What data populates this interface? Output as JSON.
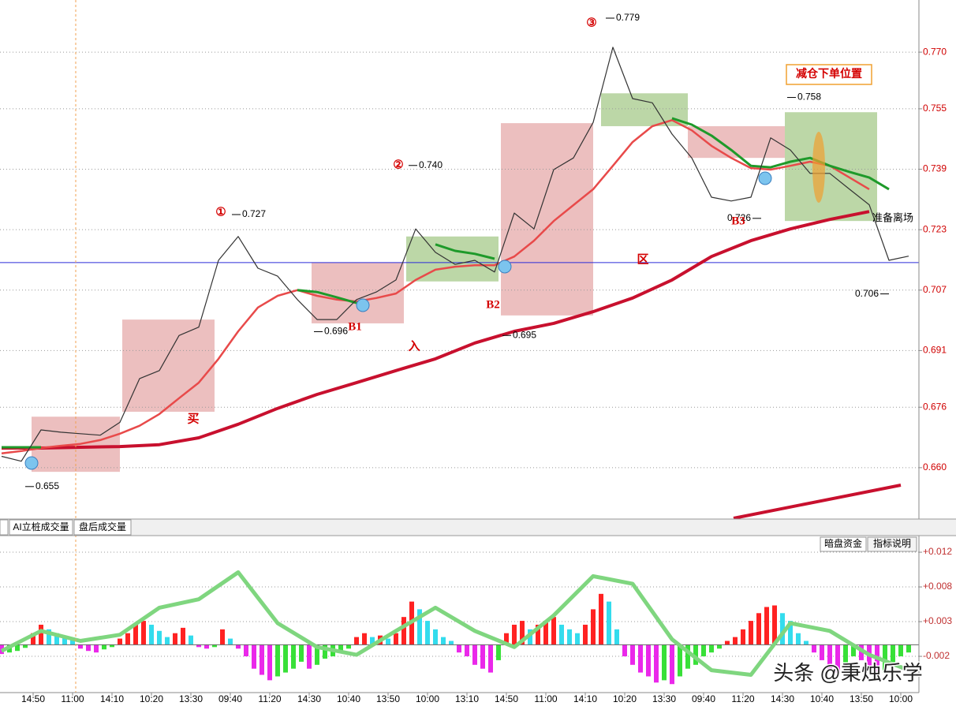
{
  "tabs": [
    "AI立桩成交量",
    "盘后成交量"
  ],
  "indicator_buttons": [
    "暗盘资金",
    "指标说明"
  ],
  "watermark": "头条 @秉烛乐学",
  "chart_data": [
    {
      "type": "line",
      "xlim": [
        -0.84,
        22.46
      ],
      "ylim": [
        0.6464,
        0.7838
      ],
      "yticks": [
        {
          "value": 0.66,
          "label": "0.660"
        },
        0.676,
        0.691,
        0.707,
        0.723,
        0.739,
        0.755,
        {
          "value": 0.77,
          "label": "0.770"
        }
      ],
      "grid": true,
      "level_line": {
        "value": 0.7143,
        "color": "#2b2bd9"
      },
      "zones": [
        {
          "x": [
            -0.04,
            2.2
          ],
          "y": [
            0.6589,
            0.6735
          ],
          "color": "#e6a9a9"
        },
        {
          "x": [
            2.26,
            4.6
          ],
          "y": [
            0.6748,
            0.6992
          ],
          "color": "#e6a9a9"
        },
        {
          "x": [
            7.06,
            9.4
          ],
          "y": [
            0.6982,
            0.7143
          ],
          "color": "#e6a9a9"
        },
        {
          "x": [
            9.46,
            11.8
          ],
          "y": [
            0.7093,
            0.7212
          ],
          "color": "#a6c98a"
        },
        {
          "x": [
            11.86,
            14.2
          ],
          "y": [
            0.7003,
            0.7512
          ],
          "color": "#e6a9a9"
        },
        {
          "x": [
            14.4,
            16.6
          ],
          "y": [
            0.7504,
            0.7591
          ],
          "color": "#a6c98a"
        },
        {
          "x": [
            16.6,
            19.06
          ],
          "y": [
            0.742,
            0.7504
          ],
          "color": "#e6a9a9"
        },
        {
          "x": [
            19.06,
            21.4
          ],
          "y": [
            0.7253,
            0.7541
          ],
          "color": "#a6c98a"
        }
      ],
      "series": [
        {
          "color": "#c8102e",
          "width": 4,
          "x": [
            -0.8,
            0.2,
            1.2,
            2.2,
            3.2,
            4.2,
            5.2,
            6.2,
            7.2,
            8.2,
            9.2,
            10.2,
            11.2,
            12.2,
            13.2,
            14.2,
            15.2,
            16.2,
            17.2,
            18.2,
            19.2,
            20.2,
            21.2,
            22.2
          ],
          "values": [
            0.6652,
            0.6652,
            0.6654,
            0.6656,
            0.6661,
            0.6679,
            0.6715,
            0.6757,
            0.6794,
            0.6825,
            0.6857,
            0.6888,
            0.693,
            0.6961,
            0.6982,
            0.7013,
            0.7049,
            0.7097,
            0.7159,
            0.7201,
            0.7232,
            0.7257,
            0.7278,
            null
          ]
        },
        {
          "color": "#e84a4a",
          "width": 2.5,
          "x": [
            -0.8,
            -0.3,
            0.2,
            0.7,
            1.2,
            1.7,
            2.2,
            2.7,
            3.2,
            3.7,
            4.2,
            4.7,
            5.2,
            5.7,
            6.2,
            6.7,
            7.2,
            7.7,
            8.2,
            8.7,
            9.2,
            9.7,
            10.2,
            10.7,
            11.2,
            11.7,
            12.2,
            12.7,
            13.2,
            13.7,
            14.2,
            14.7,
            15.2,
            15.7,
            16.2,
            16.7,
            17.2,
            17.7,
            18.2,
            18.7,
            19.2,
            19.7,
            20.2,
            20.7,
            21.2,
            21.7,
            22.2
          ],
          "values": [
            0.6638,
            0.6644,
            0.6652,
            0.6658,
            0.6663,
            0.6673,
            0.669,
            0.6711,
            0.6742,
            0.6784,
            0.6825,
            0.6888,
            0.6961,
            0.7024,
            0.7055,
            0.707,
            0.7055,
            0.7045,
            0.704,
            0.7049,
            0.7061,
            0.7097,
            0.7124,
            0.7132,
            0.7136,
            0.7136,
            0.7159,
            0.7201,
            0.7253,
            0.7295,
            0.7337,
            0.7399,
            0.7462,
            0.7504,
            0.752,
            0.7493,
            0.7452,
            0.742,
            0.7393,
            0.7389,
            0.7399,
            0.741,
            0.7399,
            0.7368,
            0.7337,
            null,
            null
          ]
        },
        {
          "color": "#1e9a2a",
          "width": 3,
          "x": [
            -0.8,
            -0.3,
            0.2,
            0.7,
            1.2,
            1.7,
            2.2,
            2.7,
            3.2,
            3.7,
            4.2,
            4.7,
            5.2,
            5.7,
            6.2,
            6.7,
            7.2,
            7.7,
            8.2,
            8.7,
            9.2,
            9.7,
            10.2,
            10.7,
            11.2,
            11.7,
            12.2,
            12.7,
            13.2,
            13.7,
            14.2,
            14.7,
            15.2,
            15.7,
            16.2,
            16.7,
            17.2,
            17.7,
            18.2,
            18.7,
            19.2,
            19.7,
            20.2,
            20.7,
            21.2,
            21.7,
            22.2
          ],
          "values": [
            0.6654,
            0.6654,
            0.6654,
            null,
            null,
            null,
            null,
            null,
            null,
            null,
            null,
            null,
            null,
            null,
            null,
            0.707,
            0.7065,
            0.7051,
            0.7036,
            null,
            null,
            null,
            0.7191,
            0.7174,
            0.7166,
            0.7153,
            null,
            null,
            null,
            null,
            null,
            null,
            null,
            null,
            0.7525,
            0.7508,
            0.7479,
            0.7441,
            0.7399,
            0.7395,
            0.741,
            0.742,
            0.7399,
            0.7383,
            0.7368,
            0.7337,
            null
          ]
        },
        {
          "color": "#333333",
          "width": 1.2,
          "x": [
            -0.8,
            -0.3,
            0.2,
            0.7,
            1.2,
            1.7,
            2.2,
            2.7,
            3.2,
            3.7,
            4.2,
            4.7,
            5.2,
            5.7,
            6.2,
            6.7,
            7.2,
            7.7,
            8.2,
            8.7,
            9.2,
            9.7,
            10.2,
            10.7,
            11.2,
            11.7,
            12.2,
            12.7,
            13.2,
            13.7,
            14.2,
            14.7,
            15.2,
            15.7,
            16.2,
            16.7,
            17.2,
            17.7,
            18.2,
            18.7,
            19.2,
            19.7,
            20.2,
            20.7,
            21.2,
            21.7,
            22.2
          ],
          "values": [
            0.663,
            0.6617,
            0.67,
            0.6694,
            0.669,
            0.6686,
            0.672,
            0.6836,
            0.6857,
            0.695,
            0.6972,
            0.7149,
            0.7212,
            0.7128,
            0.7107,
            0.7045,
            0.6992,
            0.6992,
            0.7045,
            0.7065,
            0.7097,
            0.7232,
            0.717,
            0.7138,
            0.7149,
            0.7118,
            0.7274,
            0.7232,
            0.7389,
            0.742,
            0.7514,
            0.7713,
            0.7577,
            0.7566,
            0.7483,
            0.742,
            0.7316,
            0.7306,
            0.7316,
            0.7473,
            0.7441,
            0.7379,
            0.7379,
            0.7337,
            0.7296,
            0.7149,
            0.716
          ]
        }
      ],
      "price_labels": [
        0.727,
        {
          "value": 0.74,
          "label": "0.740"
        },
        0.779,
        0.758,
        0.696,
        0.695,
        0.726,
        0.706,
        0.655
      ],
      "notes": [
        "①",
        "②",
        "③",
        "B1",
        "B2",
        "B3",
        "买",
        "入",
        "区",
        "减仓下单位置",
        "准备离场"
      ]
    },
    {
      "type": "bar",
      "xlim": [
        -0.84,
        22.46
      ],
      "ylim": [
        -0.0062,
        0.01405
      ],
      "yticks": [
        {
          "value": 0.012,
          "label": "+0.012"
        },
        {
          "value": 0.0075,
          "label": "+0.008"
        },
        {
          "value": 0.003,
          "label": "+0.003"
        },
        {
          "value": -0.0015,
          "label": "-0.002"
        }
      ],
      "grid": true,
      "xticks": [
        {
          "value": 0,
          "label": "14:50"
        },
        {
          "value": 1,
          "label": "11:00"
        },
        {
          "value": 2,
          "label": "14:10"
        },
        {
          "value": 3,
          "label": "10:20"
        },
        {
          "value": 4,
          "label": "13:30"
        },
        {
          "value": 5,
          "label": "09:40"
        },
        {
          "value": 6,
          "label": "11:20"
        },
        {
          "value": 7,
          "label": "14:30"
        },
        {
          "value": 8,
          "label": "10:40"
        },
        {
          "value": 9,
          "label": "13:50"
        },
        {
          "value": 10,
          "label": "10:00"
        },
        {
          "value": 11,
          "label": "13:10"
        },
        {
          "value": 12,
          "label": "14:50"
        },
        {
          "value": 13,
          "label": "11:00"
        },
        {
          "value": 14,
          "label": "14:10"
        },
        {
          "value": 15,
          "label": "10:20"
        },
        {
          "value": 16,
          "label": "13:30"
        },
        {
          "value": 17,
          "label": "09:40"
        },
        {
          "value": 18,
          "label": "11:20"
        },
        {
          "value": 19,
          "label": "14:30"
        },
        {
          "value": 20,
          "label": "10:40"
        },
        {
          "value": 21,
          "label": "13:50"
        },
        {
          "value": 22,
          "label": "10:00"
        }
      ],
      "bar_colors": {
        "pos_up": "#ff2222",
        "pos_down": "#33dced",
        "neg_down": "#ea28ea",
        "neg_up": "#38e038"
      },
      "x": [
        -0.8,
        -0.6,
        -0.4,
        -0.2,
        0,
        0.2,
        0.4,
        0.6,
        0.8,
        1,
        1.2,
        1.4,
        1.6,
        1.8,
        2,
        2.2,
        2.4,
        2.6,
        2.8,
        3,
        3.2,
        3.4,
        3.6,
        3.8,
        4,
        4.2,
        4.4,
        4.6,
        4.8,
        5,
        5.2,
        5.4,
        5.6,
        5.8,
        6,
        6.2,
        6.4,
        6.6,
        6.8,
        7,
        7.2,
        7.4,
        7.6,
        7.8,
        8,
        8.2,
        8.4,
        8.6,
        8.8,
        9,
        9.2,
        9.4,
        9.6,
        9.8,
        10,
        10.2,
        10.4,
        10.6,
        10.8,
        11,
        11.2,
        11.4,
        11.6,
        11.8,
        12,
        12.2,
        12.4,
        12.6,
        12.8,
        13,
        13.2,
        13.4,
        13.6,
        13.8,
        14,
        14.2,
        14.4,
        14.6,
        14.8,
        15,
        15.2,
        15.4,
        15.6,
        15.8,
        16,
        16.2,
        16.4,
        16.6,
        16.8,
        17,
        17.2,
        17.4,
        17.6,
        17.8,
        18,
        18.2,
        18.4,
        18.6,
        18.8,
        19,
        19.2,
        19.4,
        19.6,
        19.8,
        20,
        20.2,
        20.4,
        20.6,
        20.8,
        21,
        21.2,
        21.4,
        21.6,
        21.8,
        22,
        22.2
      ],
      "values": [
        -0.0012,
        -0.001,
        -0.0008,
        -0.0004,
        0.0015,
        0.0026,
        0.002,
        0.0015,
        0.0012,
        0.0008,
        -0.0005,
        -0.0008,
        -0.001,
        -0.0006,
        -0.0003,
        0.0008,
        0.0015,
        0.0026,
        0.0031,
        0.0026,
        0.0018,
        0.001,
        0.0015,
        0.0022,
        0.0012,
        -0.0003,
        -0.0005,
        -0.0003,
        0.002,
        0.0008,
        -0.0005,
        -0.0015,
        -0.0031,
        -0.0039,
        -0.0046,
        -0.0041,
        -0.0036,
        -0.0031,
        -0.0022,
        -0.0031,
        -0.0026,
        -0.0018,
        -0.0015,
        -0.001,
        -0.0005,
        0.001,
        0.0015,
        0.001,
        0.0012,
        0.0008,
        0.0015,
        0.0036,
        0.0056,
        0.0046,
        0.0031,
        0.002,
        0.001,
        0.0005,
        -0.001,
        -0.0015,
        -0.0026,
        -0.0031,
        -0.0036,
        -0.002,
        0.0015,
        0.0026,
        0.0031,
        0.002,
        0.0026,
        0.0031,
        0.0036,
        0.0026,
        0.002,
        0.0015,
        0.0026,
        0.0046,
        0.0066,
        0.0056,
        0.002,
        -0.0015,
        -0.0026,
        -0.0036,
        -0.0041,
        -0.0049,
        -0.0046,
        -0.0051,
        -0.0041,
        -0.0031,
        -0.0026,
        -0.0015,
        -0.001,
        -0.0005,
        0.0005,
        0.001,
        0.002,
        0.0031,
        0.0041,
        0.0049,
        0.0051,
        0.0041,
        0.0031,
        0.0015,
        0.0005,
        -0.001,
        -0.002,
        -0.0031,
        -0.0036,
        -0.0026,
        -0.0015,
        -0.002,
        -0.0031,
        -0.0041,
        -0.0036,
        -0.0026,
        -0.0015,
        -0.001
      ],
      "series": [
        {
          "color": "#7fd67f",
          "width": 5,
          "x": [
            -0.8,
            0.2,
            1.2,
            2.2,
            3.2,
            4.2,
            5.2,
            6.2,
            7.2,
            8.2,
            9.2,
            10.2,
            11.2,
            12.2,
            13.2,
            14.2,
            15.2,
            16.2,
            17.2,
            18.2,
            19.2,
            20.2,
            21.2,
            22.2
          ],
          "values": [
            -0.0008,
            0.0018,
            0.0005,
            0.0013,
            0.0048,
            0.0059,
            0.0094,
            0.0028,
            -0.0003,
            -0.0013,
            0.0018,
            0.0048,
            0.0018,
            -0.0003,
            0.0038,
            0.0089,
            0.0079,
            0.0007,
            -0.0033,
            -0.0039,
            0.0028,
            0.0018,
            -0.0013,
            -0.0033
          ]
        }
      ]
    }
  ]
}
